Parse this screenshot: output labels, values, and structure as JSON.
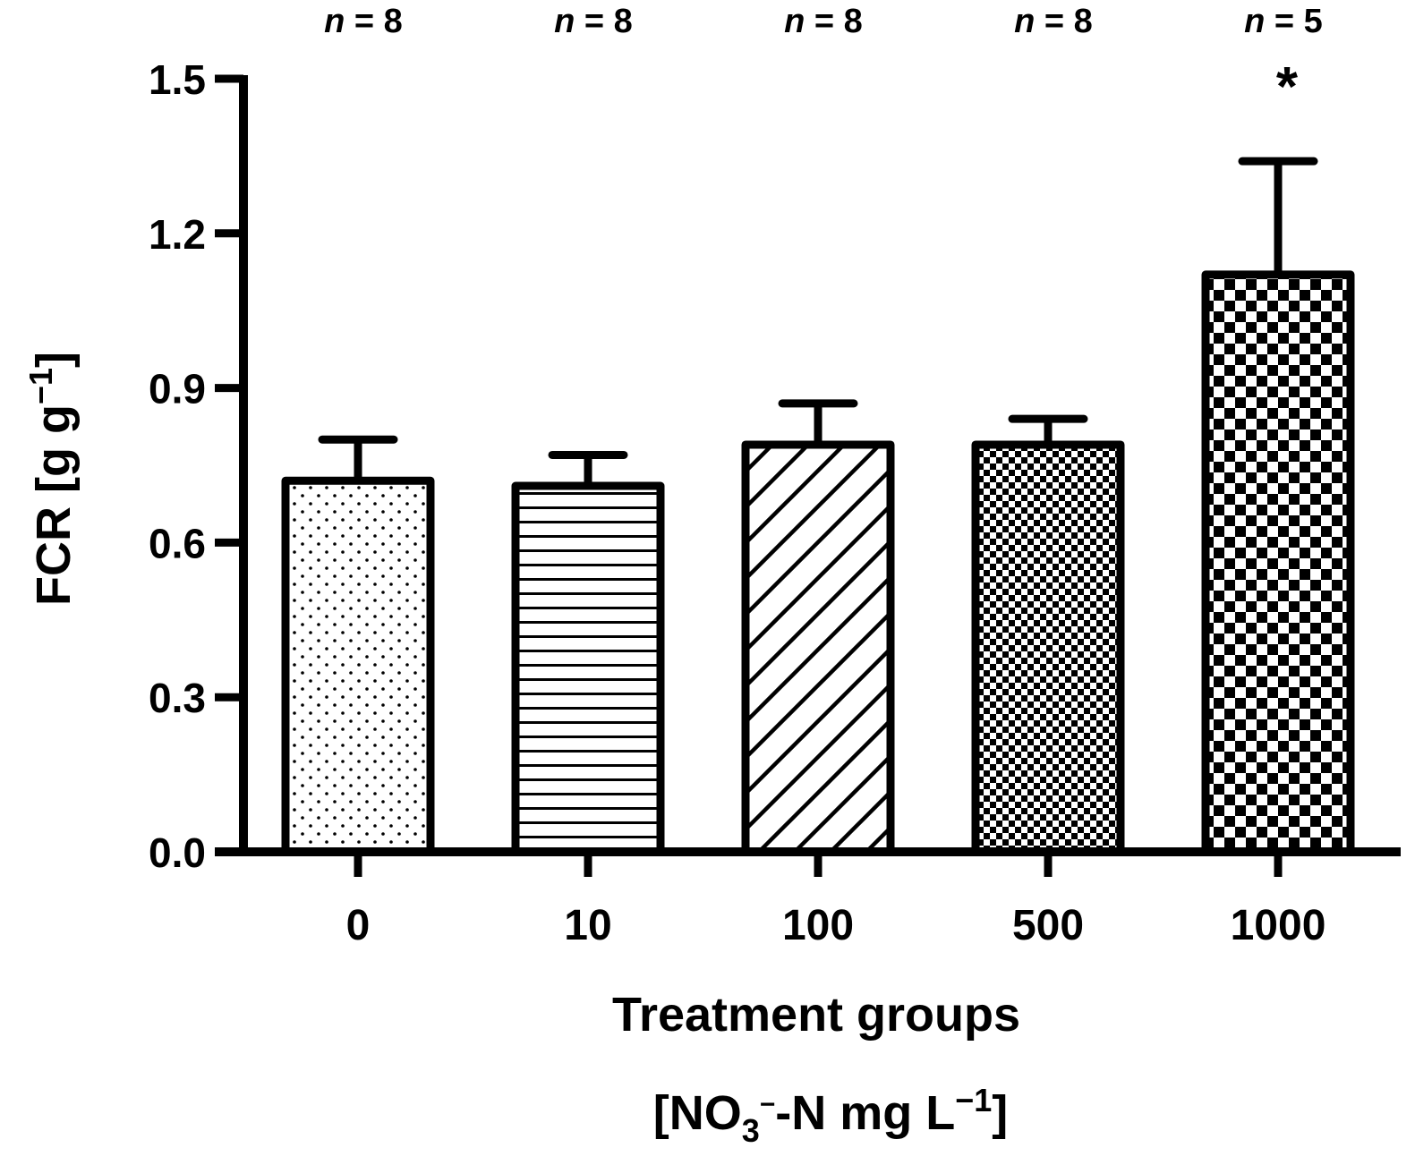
{
  "chart_data": {
    "type": "bar",
    "title": "",
    "ylabel": "FCR [g g−1]",
    "ylabel_parts": {
      "main": "FCR [g g",
      "sup": "−1",
      "close": "]"
    },
    "xlabel": "Treatment groups",
    "xlabel_line2": "[NO3−-N mg L−1]",
    "xlabel_line2_parts": {
      "open": "[NO",
      "sub": "3",
      "minus_sup": "−",
      "mid": "-N mg L",
      "sup": "−1",
      "close": "]"
    },
    "categories": [
      "0",
      "10",
      "100",
      "500",
      "1000"
    ],
    "values": [
      0.72,
      0.71,
      0.79,
      0.79,
      1.12
    ],
    "error_upper": [
      0.08,
      0.06,
      0.08,
      0.05,
      0.22
    ],
    "n_labels": [
      "n = 8",
      "n = 8",
      "n = 8",
      "n = 8",
      "n = 5"
    ],
    "significance": [
      "",
      "",
      "",
      "",
      "*"
    ],
    "patterns": [
      "dots",
      "horizontal-lines",
      "diagonal-lines",
      "fine-checker",
      "coarse-checker"
    ],
    "ylim": [
      0,
      1.5
    ],
    "yticks": [
      "0.0",
      "0.3",
      "0.6",
      "0.9",
      "1.2",
      "1.5"
    ],
    "grid": false,
    "legend": "none",
    "colors": {
      "stroke": "#000000",
      "fill": "#ffffff"
    }
  }
}
